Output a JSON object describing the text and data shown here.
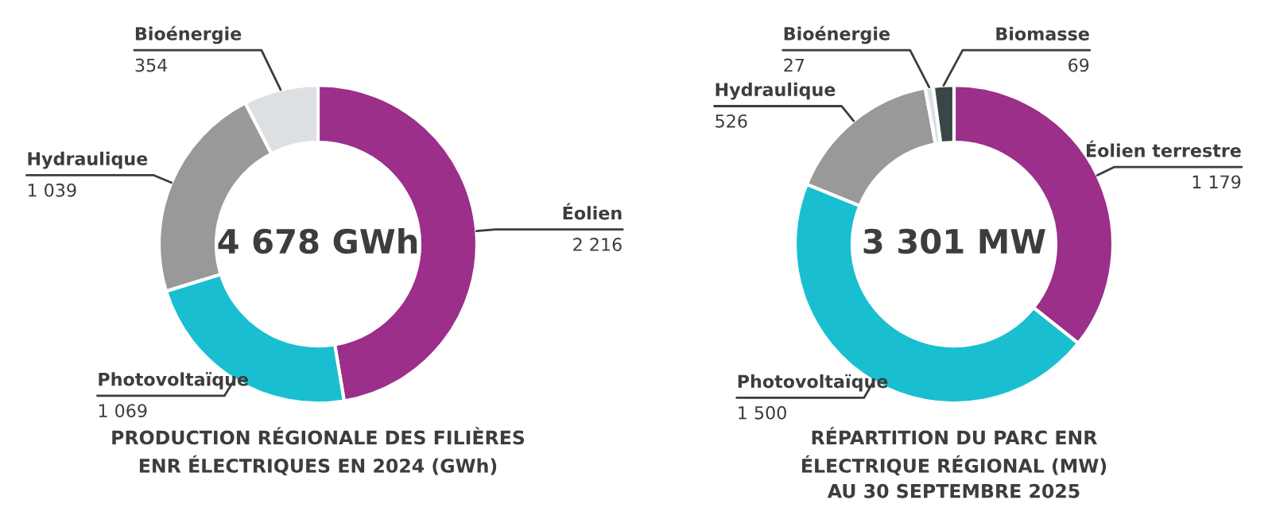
{
  "chart_data": [
    {
      "type": "donut",
      "title": "PRODUCTION RÉGIONALE DES FILIÈRES\nENR ÉLECTRIQUES EN 2024 (GWh)",
      "categories": [
        "Éolien",
        "Photovoltaïque",
        "Hydraulique",
        "Bioénergie"
      ],
      "values": [
        2216,
        1069,
        1039,
        354
      ],
      "colors": [
        "#9b2f8a",
        "#19bfd1",
        "#999999",
        "#dde0e3"
      ],
      "value_labels": [
        "2 216",
        "1 069",
        "1 039",
        "354"
      ],
      "annotations": [
        "4 678 GWh"
      ],
      "legend": false
    },
    {
      "type": "donut",
      "title": "RÉPARTITION DU PARC ENR\nÉLECTRIQUE RÉGIONAL (MW)\nAU 30 SEPTEMBRE 2025",
      "categories": [
        "Éolien terrestre",
        "Photovoltaïque",
        "Hydraulique",
        "Bioénergie",
        "Biomasse"
      ],
      "values": [
        1179,
        1500,
        526,
        27,
        69
      ],
      "colors": [
        "#9b2f8a",
        "#19bfd1",
        "#999999",
        "#dde0e3",
        "#3a4547"
      ],
      "value_labels": [
        "1 179",
        "1 500",
        "526",
        "27",
        "69"
      ],
      "annotations": [
        "3 301 MW"
      ],
      "legend": false
    }
  ]
}
